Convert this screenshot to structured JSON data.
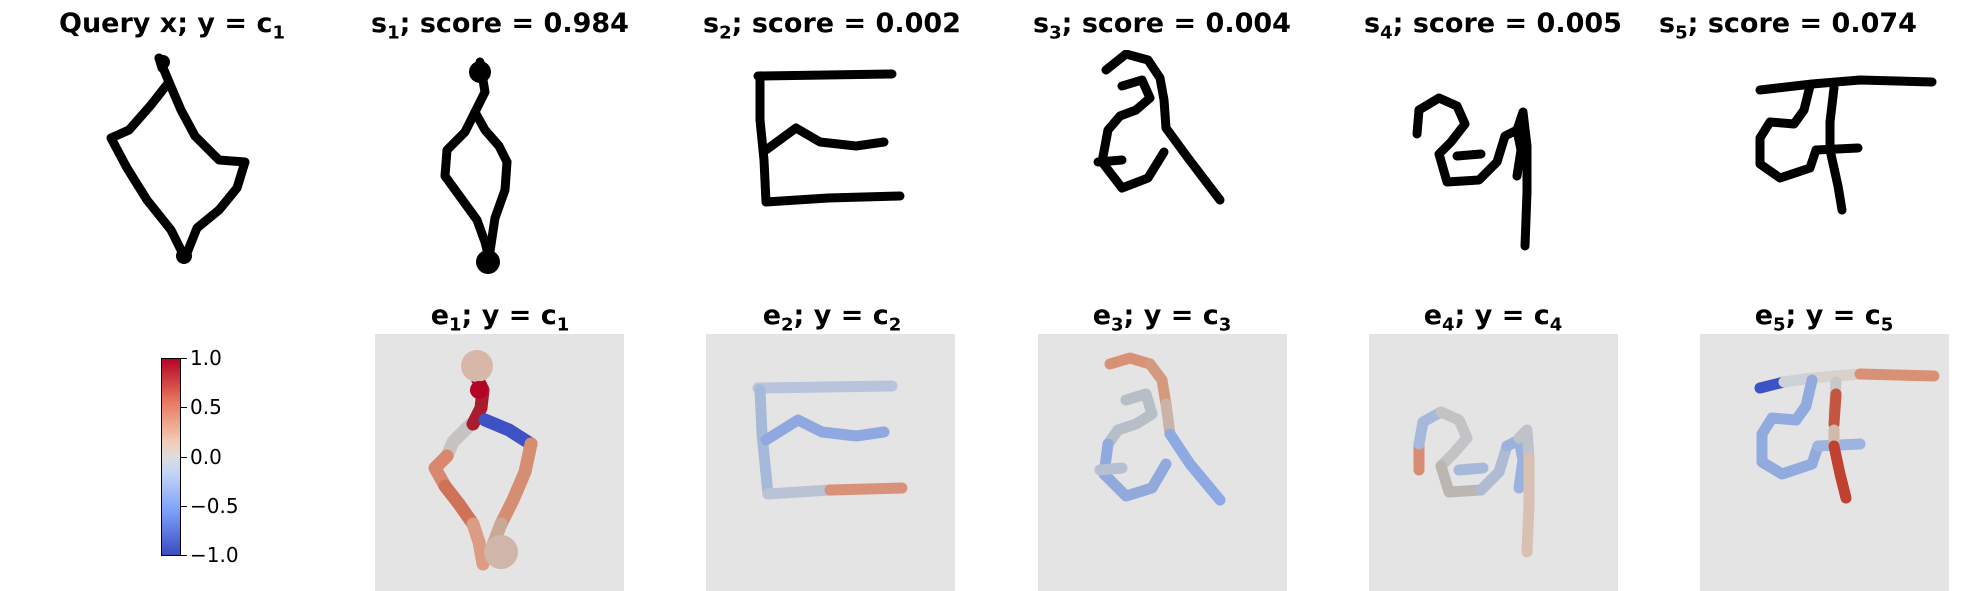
{
  "top_titles": [
    {
      "main": "Query x; y = c",
      "sub": "1"
    },
    {
      "main": "s",
      "sub": "1",
      "tail": "; score = 0.984"
    },
    {
      "main": "s",
      "sub": "2",
      "tail": "; score = 0.002"
    },
    {
      "main": "s",
      "sub": "3",
      "tail": "; score = 0.004"
    },
    {
      "main": "s",
      "sub": "4",
      "tail": "; score = 0.005"
    },
    {
      "main": "s",
      "sub": "5",
      "tail": "; score = 0.074"
    }
  ],
  "bottom_titles": [
    {
      "main": "e",
      "sub": "1",
      "mid": "; y = c",
      "sub2": "1"
    },
    {
      "main": "e",
      "sub": "2",
      "mid": "; y = c",
      "sub2": "2"
    },
    {
      "main": "e",
      "sub": "3",
      "mid": "; y = c",
      "sub2": "3"
    },
    {
      "main": "e",
      "sub": "4",
      "mid": "; y = c",
      "sub2": "4"
    },
    {
      "main": "e",
      "sub": "5",
      "mid": "; y = c",
      "sub2": "5"
    }
  ],
  "colorbar": {
    "ticks": [
      "1.0",
      "0.5",
      "0.0",
      "−0.5",
      "−1.0"
    ],
    "range": [
      -1.0,
      1.0
    ],
    "colormap": "coolwarm",
    "colors": {
      "high": "#b40426",
      "mid": "#dddddd",
      "low": "#3b4cc0"
    }
  },
  "panel_background": "#e4e4e4"
}
